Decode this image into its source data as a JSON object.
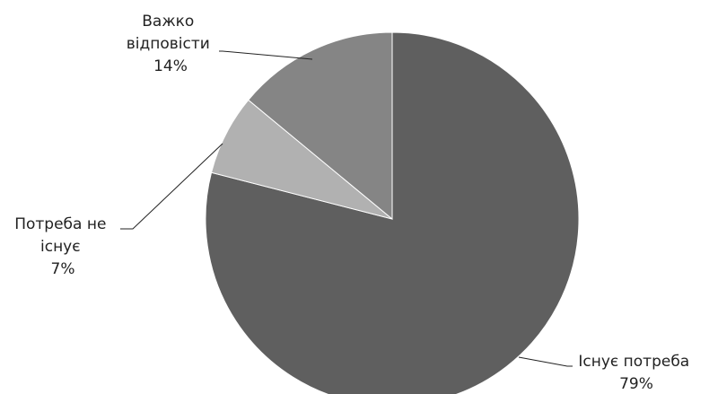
{
  "chart_data": {
    "type": "pie",
    "title": "",
    "slices": [
      {
        "label_lines": [
          "Існує потреба"
        ],
        "value": 79,
        "value_label": "79%",
        "color": "#5f5f5f"
      },
      {
        "label_lines": [
          "Потреба не",
          "існує"
        ],
        "value": 7,
        "value_label": "7%",
        "color": "#b1b1b1"
      },
      {
        "label_lines": [
          "Важко",
          "відповісти"
        ],
        "value": 14,
        "value_label": "14%",
        "color": "#858585"
      }
    ],
    "start_angle": "12 o'clock",
    "direction": "clockwise",
    "legend": "none"
  }
}
